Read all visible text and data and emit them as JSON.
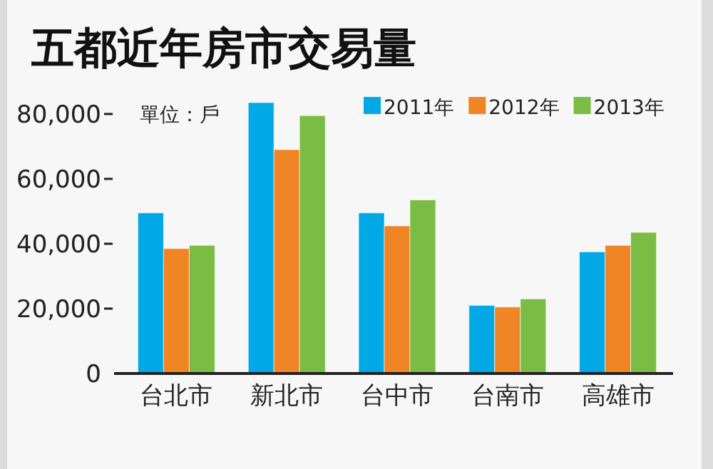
{
  "chart_data": {
    "type": "bar",
    "title": "五都近年房市交易量",
    "annotations": [
      "單位：戶"
    ],
    "categories": [
      "台北市",
      "新北市",
      "台中市",
      "台南市",
      "高雄市"
    ],
    "series": [
      {
        "name": "2011年",
        "color": "#00a9e6",
        "values": [
          49500,
          83500,
          49500,
          21000,
          37500
        ]
      },
      {
        "name": "2012年",
        "color": "#f08526",
        "values": [
          38500,
          69000,
          45500,
          20500,
          39500
        ]
      },
      {
        "name": "2013年",
        "color": "#7bbd44",
        "values": [
          39500,
          79500,
          53500,
          23000,
          43500
        ]
      }
    ],
    "ylim": [
      0,
      83500
    ],
    "yticks": [
      {
        "value": 0,
        "label": "0"
      },
      {
        "value": 20000,
        "label": "20,000"
      },
      {
        "value": 40000,
        "label": "40,000"
      },
      {
        "value": 60000,
        "label": "60,000"
      },
      {
        "value": 80000,
        "label": "80,000"
      }
    ],
    "legend": "top right",
    "grid": false
  }
}
